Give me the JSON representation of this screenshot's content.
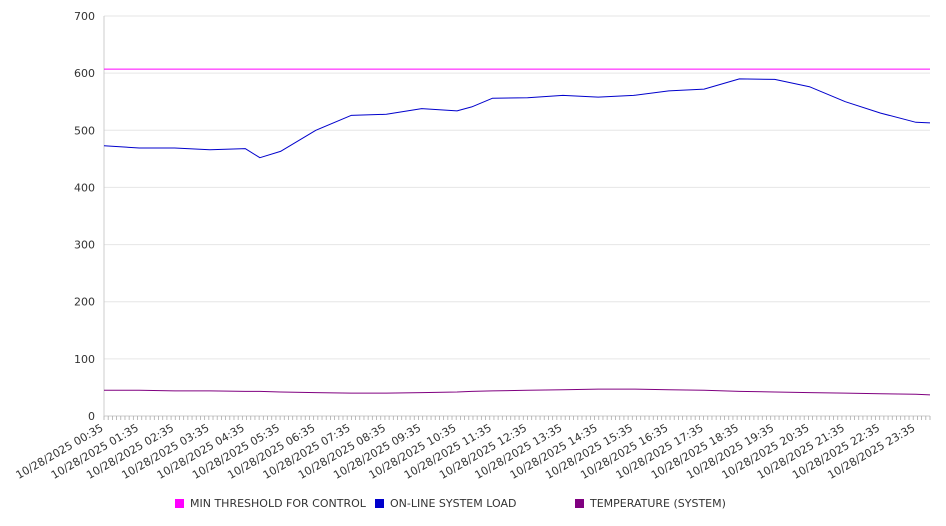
{
  "chart_data": {
    "type": "line",
    "title": "",
    "xlabel": "",
    "ylabel": "",
    "ylim": [
      0,
      700
    ],
    "yticks": [
      "0",
      "100",
      "200",
      "300",
      "400",
      "500",
      "600",
      "700"
    ],
    "grid": true,
    "legend_position": "bottom",
    "x_tick_labels": [
      "10/28/2025 00:35",
      "10/28/2025 01:35",
      "10/28/2025 02:35",
      "10/28/2025 03:35",
      "10/28/2025 04:35",
      "10/28/2025 05:35",
      "10/28/2025 06:35",
      "10/28/2025 07:35",
      "10/28/2025 08:35",
      "10/28/2025 09:35",
      "10/28/2025 10:35",
      "10/28/2025 11:35",
      "10/28/2025 12:35",
      "10/28/2025 13:35",
      "10/28/2025 14:35",
      "10/28/2025 15:35",
      "10/28/2025 16:35",
      "10/28/2025 17:35",
      "10/28/2025 18:35",
      "10/28/2025 19:35",
      "10/28/2025 20:35",
      "10/28/2025 21:35",
      "10/28/2025 22:35",
      "10/28/2025 23:35"
    ],
    "x": [
      "00:35",
      "01:35",
      "02:35",
      "03:35",
      "04:35",
      "05:00",
      "05:35",
      "06:35",
      "07:35",
      "08:35",
      "09:35",
      "10:35",
      "11:00",
      "11:35",
      "12:35",
      "13:35",
      "14:35",
      "15:35",
      "16:35",
      "17:35",
      "18:35",
      "19:35",
      "20:35",
      "21:35",
      "22:35",
      "23:35",
      "23:59"
    ],
    "series": [
      {
        "name": "MIN THRESHOLD FOR CONTROL",
        "color": "#ff00ff",
        "values": [
          607,
          607,
          607,
          607,
          607,
          607,
          607,
          607,
          607,
          607,
          607,
          607,
          607,
          607,
          607,
          607,
          607,
          607,
          607,
          607,
          607,
          607,
          607,
          607,
          607,
          607,
          607
        ]
      },
      {
        "name": "ON-LINE SYSTEM LOAD",
        "color": "#0000cc",
        "values": [
          473,
          469,
          469,
          466,
          468,
          452,
          463,
          500,
          526,
          528,
          538,
          534,
          541,
          556,
          557,
          561,
          558,
          561,
          569,
          572,
          590,
          589,
          576,
          550,
          530,
          514,
          513
        ]
      },
      {
        "name": "TEMPERATURE (SYSTEM)",
        "color": "#800080",
        "values": [
          45,
          45,
          44,
          44,
          43,
          43,
          42,
          41,
          40,
          40,
          41,
          42,
          43,
          44,
          45,
          46,
          47,
          47,
          46,
          45,
          43,
          42,
          41,
          40,
          39,
          38,
          37
        ]
      }
    ]
  }
}
